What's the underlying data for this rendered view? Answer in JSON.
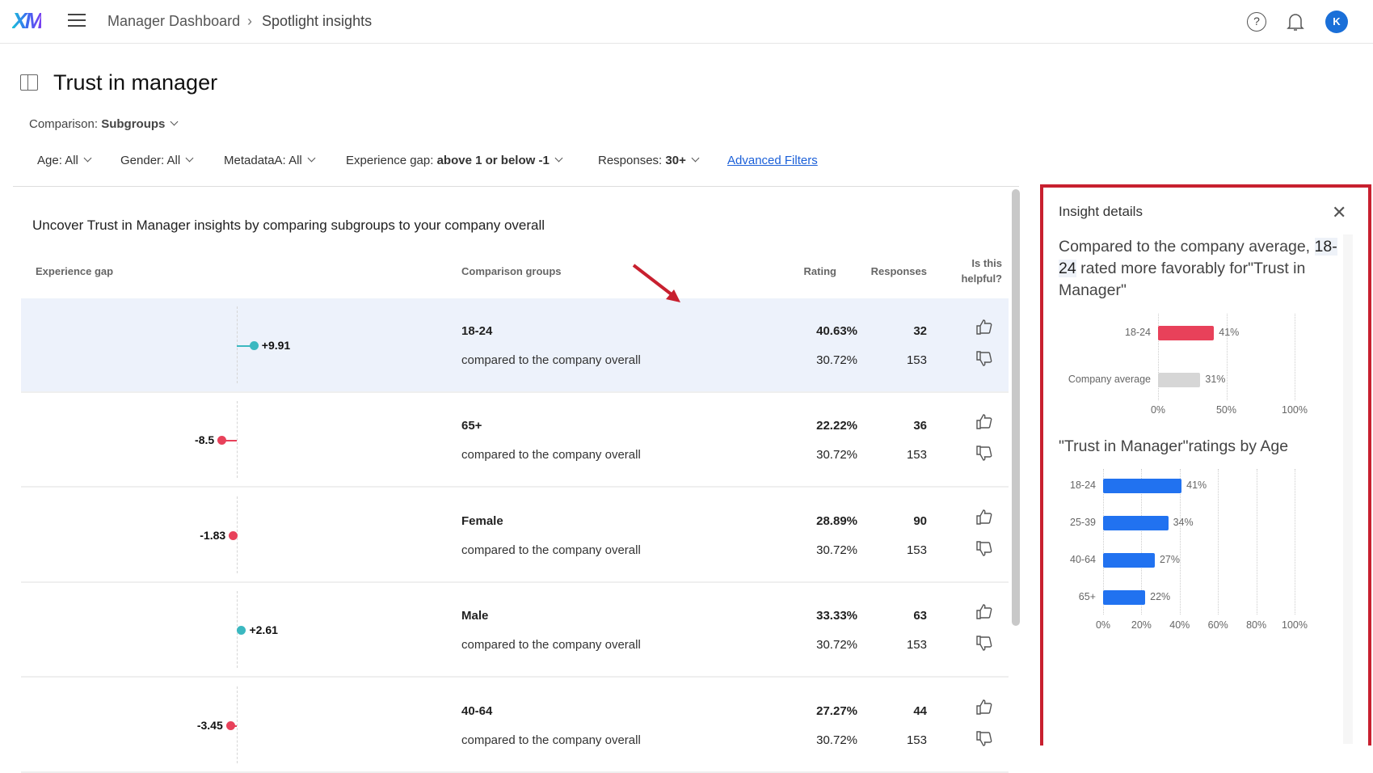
{
  "topbar": {
    "logo": "XM",
    "breadcrumb": [
      "Manager Dashboard",
      "Spotlight insights"
    ],
    "help_icon": "?",
    "avatar": "K"
  },
  "page": {
    "title": "Trust in manager",
    "comparison_label": "Comparison: ",
    "comparison_value": "Subgroups",
    "filters": [
      {
        "label": "Age: ",
        "value": "All"
      },
      {
        "label": "Gender: ",
        "value": "All"
      },
      {
        "label": "MetadataA: ",
        "value": "All"
      },
      {
        "label": "Experience gap: ",
        "value": "above 1 or below -1"
      },
      {
        "label": "Responses: ",
        "value": "30+"
      }
    ],
    "advanced_filters": "Advanced Filters",
    "intro": "Uncover Trust in Manager insights by comparing subgroups to your company overall"
  },
  "table": {
    "headers": {
      "gap": "Experience gap",
      "groups": "Comparison groups",
      "rating": "Rating",
      "responses": "Responses",
      "helpful1": "Is this",
      "helpful2": "helpful?"
    },
    "rows": [
      {
        "gap": 9.91,
        "gap_label": "+9.91",
        "group": "18-24",
        "compare": "compared to the company overall",
        "rating": "40.63%",
        "company_rating": "30.72%",
        "responses": "32",
        "company_responses": "153",
        "selected": true
      },
      {
        "gap": -8.5,
        "gap_label": "-8.5",
        "group": "65+",
        "compare": "compared to the company overall",
        "rating": "22.22%",
        "company_rating": "30.72%",
        "responses": "36",
        "company_responses": "153"
      },
      {
        "gap": -1.83,
        "gap_label": "-1.83",
        "group": "Female",
        "compare": "compared to the company overall",
        "rating": "28.89%",
        "company_rating": "30.72%",
        "responses": "90",
        "company_responses": "153"
      },
      {
        "gap": 2.61,
        "gap_label": "+2.61",
        "group": "Male",
        "compare": "compared to the company overall",
        "rating": "33.33%",
        "company_rating": "30.72%",
        "responses": "63",
        "company_responses": "153"
      },
      {
        "gap": -3.45,
        "gap_label": "-3.45",
        "group": "40-64",
        "compare": "compared to the company overall",
        "rating": "27.27%",
        "company_rating": "30.72%",
        "responses": "44",
        "company_responses": "153"
      }
    ]
  },
  "colors": {
    "positive": "#3bb8c0",
    "negative": "#e8415a",
    "bar": "#2172f0",
    "company": "#d6d6d6",
    "highlight_border": "#c8202f",
    "annotation_arrow": "#c8202f"
  },
  "panel": {
    "title": "Insight details",
    "text_pre": "Compared to the company average, ",
    "text_group": "18-24",
    "text_post": " rated more favorably for\"Trust in Manager\""
  },
  "chart_data": [
    {
      "type": "bar",
      "orientation": "horizontal",
      "categories": [
        "18-24",
        "Company average"
      ],
      "values": [
        41,
        31
      ],
      "value_labels": [
        "41%",
        "31%"
      ],
      "colors": [
        "#e8415a",
        "#d6d6d6"
      ],
      "xlim": [
        0,
        100
      ],
      "xticks": [
        "0%",
        "50%",
        "100%"
      ],
      "grid": true
    },
    {
      "type": "bar",
      "orientation": "horizontal",
      "title": "\"Trust in Manager\"ratings by Age",
      "categories": [
        "18-24",
        "25-39",
        "40-64",
        "65+"
      ],
      "values": [
        41,
        34,
        27,
        22
      ],
      "value_labels": [
        "41%",
        "34%",
        "27%",
        "22%"
      ],
      "colors": [
        "#2172f0"
      ],
      "xlim": [
        0,
        100
      ],
      "xticks": [
        "0%",
        "20%",
        "40%",
        "60%",
        "80%",
        "100%"
      ],
      "grid": true
    }
  ]
}
